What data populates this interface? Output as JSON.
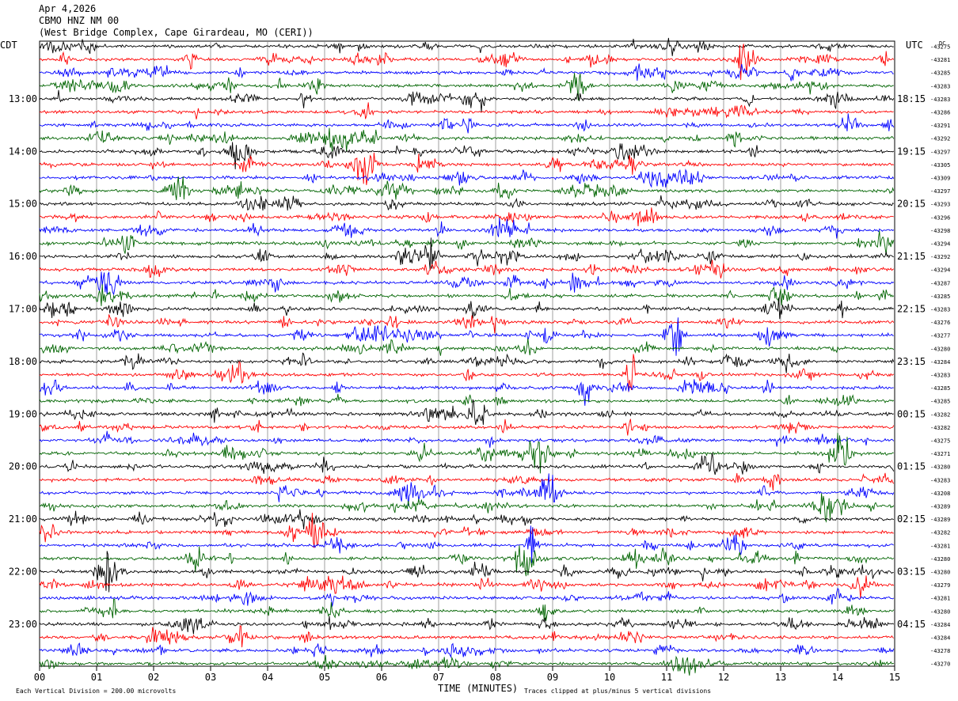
{
  "header": {
    "date": "Apr 4,2026",
    "station": "CBMO HNZ NM 00",
    "location": "(West Bridge Complex, Cape Girardeau, MO (CERI))"
  },
  "chart_data": {
    "type": "line",
    "left_timezone": "CDT",
    "right_timezone": "UTC",
    "dc_label": "DC",
    "xlabel": "TIME (MINUTES)",
    "x_ticks": [
      "00",
      "01",
      "02",
      "03",
      "04",
      "05",
      "06",
      "07",
      "08",
      "09",
      "10",
      "11",
      "12",
      "13",
      "14",
      "15"
    ],
    "xlim": [
      0,
      15
    ],
    "left_hour_labels": [
      "13:00",
      "14:00",
      "15:00",
      "16:00",
      "17:00",
      "18:00",
      "19:00",
      "20:00",
      "21:00",
      "22:00",
      "23:00"
    ],
    "right_hour_labels": [
      "18:15",
      "19:15",
      "20:15",
      "21:15",
      "22:15",
      "23:15",
      "00:15",
      "01:15",
      "02:15",
      "03:15",
      "04:15"
    ],
    "trace_colors": [
      "#000000",
      "#ff0000",
      "#0000ff",
      "#006400"
    ],
    "dc_offsets": [
      "-43275",
      "-43281",
      "-43285",
      "-43283",
      "-43283",
      "-43286",
      "-43291",
      "-43292",
      "-43297",
      "-43305",
      "-43309",
      "-43297",
      "-43293",
      "-43296",
      "-43298",
      "-43294",
      "-43292",
      "-43294",
      "-43287",
      "-43285",
      "-43283",
      "-43276",
      "-43277",
      "-43280",
      "-43284",
      "-43283",
      "-43285",
      "-43285",
      "-43282",
      "-43282",
      "-43275",
      "-43271",
      "-43280",
      "-43283",
      "-43208",
      "-43289",
      "-43289",
      "-43282",
      "-43281",
      "-43280",
      "-43280",
      "-43279",
      "-43281",
      "-43280",
      "-43284",
      "-43284",
      "-43278",
      "-43270"
    ],
    "footer_left": "Each Vertical Division =  200.00 microvolts",
    "footer_right": "Traces clipped at plus/minus 5 vertical divisions"
  }
}
